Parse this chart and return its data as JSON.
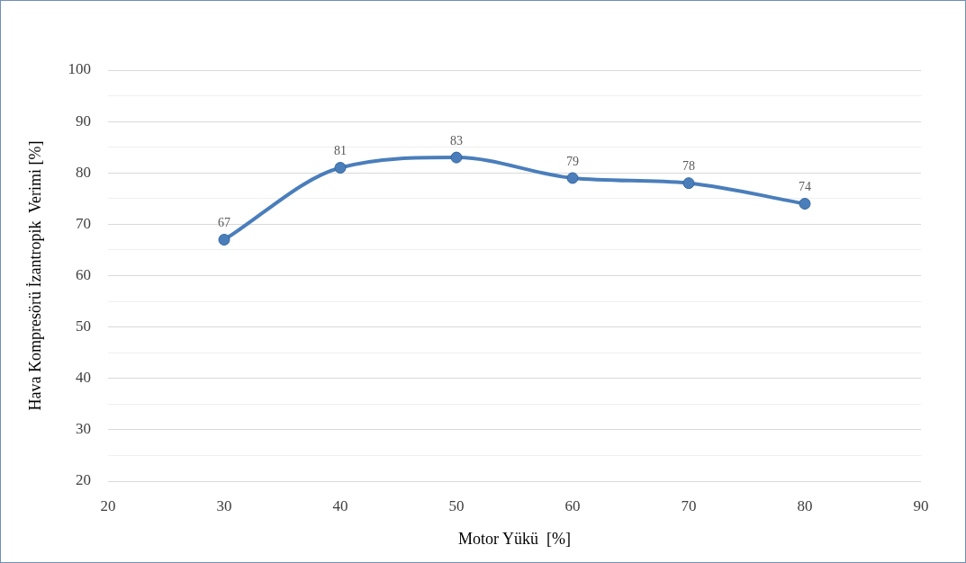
{
  "chart_data": {
    "type": "line",
    "xlabel": "Motor Yükü  [%]",
    "ylabel": "Hava Kompresörü İzantropik  Verimi [%]",
    "x": [
      30,
      40,
      50,
      60,
      70,
      80
    ],
    "series": [
      {
        "color": "#4a7ebb",
        "values": [
          67,
          81,
          83,
          79,
          78,
          74
        ]
      }
    ],
    "xlim": [
      20,
      90
    ],
    "xticks": [
      20,
      30,
      40,
      50,
      60,
      70,
      80,
      90
    ],
    "ylim": [
      20,
      100
    ],
    "yticks": [
      20,
      {
        "value": 25,
        "label": null
      },
      30,
      {
        "value": 35,
        "label": null
      },
      40,
      {
        "value": 45,
        "label": null
      },
      50,
      {
        "value": 55,
        "label": null
      },
      60,
      {
        "value": 65,
        "label": null
      },
      70,
      {
        "value": 75,
        "label": null
      },
      80,
      {
        "value": 85,
        "label": null
      },
      90,
      {
        "value": 95,
        "label": null
      },
      100
    ],
    "grid": "y",
    "legend": false,
    "marker": "circle",
    "line_style": "solid",
    "data_labels": true
  }
}
